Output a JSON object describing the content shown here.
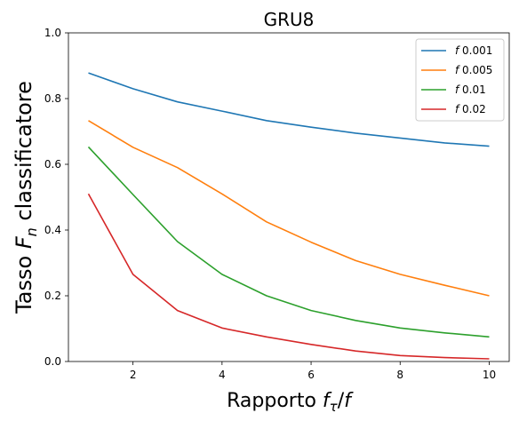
{
  "chart_data": {
    "type": "line",
    "title": "GRU8",
    "xlabel": {
      "prefix": "Rapporto ",
      "sym1": "f",
      "sub1": "τ",
      "mid": "/",
      "sym2": "f"
    },
    "ylabel": {
      "prefix": "Tasso ",
      "sym": "F",
      "sub": "n",
      "suffix": " classificatore"
    },
    "x": [
      1,
      2,
      3,
      4,
      5,
      6,
      7,
      8,
      9,
      10
    ],
    "xlim": [
      0.55,
      10.45
    ],
    "ylim": [
      0.0,
      1.0
    ],
    "xticks": [
      2,
      4,
      6,
      8,
      10
    ],
    "yticks": [
      0.0,
      0.2,
      0.4,
      0.6,
      0.8,
      1.0
    ],
    "xtick_labels": [
      "2",
      "4",
      "6",
      "8",
      "10"
    ],
    "ytick_labels": [
      "0.0",
      "0.2",
      "0.4",
      "0.6",
      "0.8",
      "1.0"
    ],
    "grid": false,
    "legend_position": "top-right",
    "series": [
      {
        "name": "f 0.001",
        "symbol": "f",
        "value_label": " 0.001",
        "color": "#1f77b4",
        "values": [
          0.878,
          0.83,
          0.79,
          0.762,
          0.733,
          0.713,
          0.695,
          0.68,
          0.665,
          0.655
        ]
      },
      {
        "name": "f 0.005",
        "symbol": "f",
        "value_label": " 0.005",
        "color": "#ff7f0e",
        "values": [
          0.733,
          0.652,
          0.59,
          0.51,
          0.425,
          0.363,
          0.307,
          0.265,
          0.232,
          0.2
        ]
      },
      {
        "name": "f 0.01",
        "symbol": "f",
        "value_label": " 0.01",
        "color": "#2ca02c",
        "values": [
          0.653,
          0.508,
          0.365,
          0.265,
          0.2,
          0.155,
          0.125,
          0.102,
          0.087,
          0.075
        ]
      },
      {
        "name": "f 0.02",
        "symbol": "f",
        "value_label": " 0.02",
        "color": "#d62728",
        "values": [
          0.51,
          0.265,
          0.155,
          0.102,
          0.075,
          0.052,
          0.032,
          0.018,
          0.012,
          0.008
        ]
      }
    ]
  }
}
